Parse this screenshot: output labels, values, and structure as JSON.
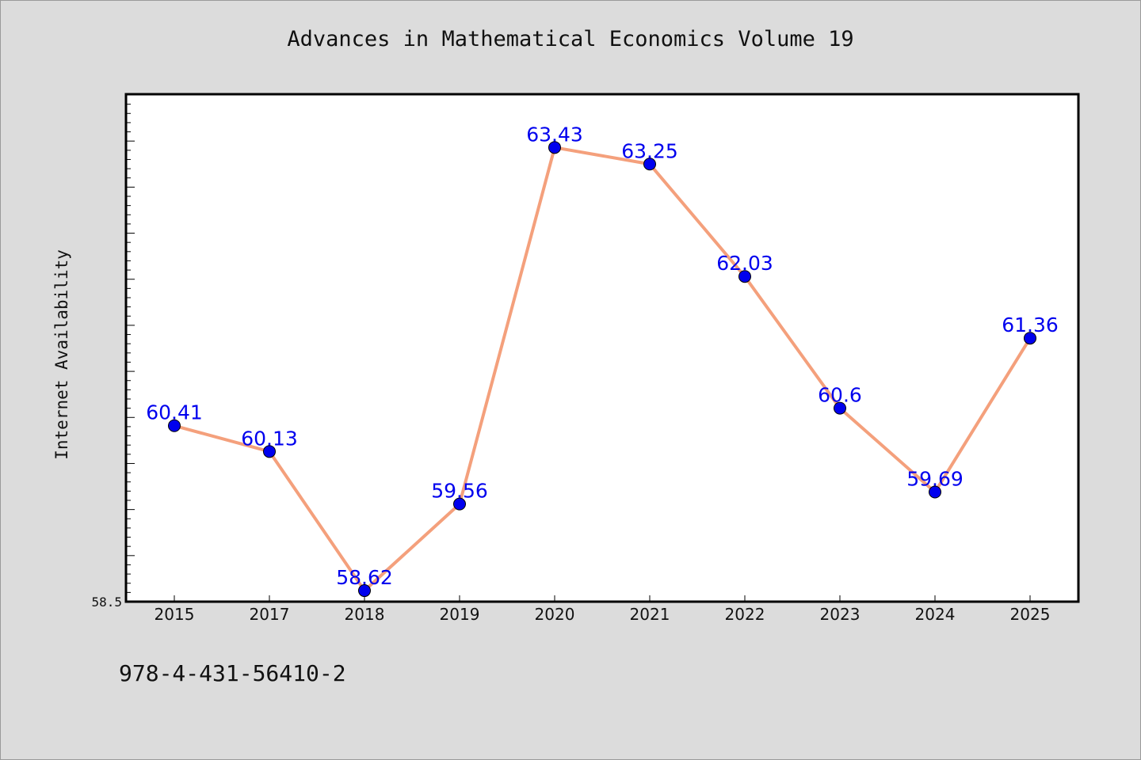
{
  "chart_data": {
    "type": "line",
    "title": "Advances in Mathematical Economics Volume 19",
    "ylabel": "Internet Availability",
    "xlabel": "",
    "categories": [
      "2015",
      "2017",
      "2018",
      "2019",
      "2020",
      "2021",
      "2022",
      "2023",
      "2024",
      "2025"
    ],
    "series": [
      {
        "values": [
          60.41,
          60.13,
          58.62,
          59.56,
          63.43,
          63.25,
          62.03,
          60.6,
          59.69,
          61.36
        ],
        "labels": [
          "60.41",
          "60.13",
          "58.62",
          "59.56",
          "63.43",
          "63.25",
          "62.03",
          "60.6",
          "59.69",
          "61.36"
        ],
        "line_color": "#f4a07c",
        "marker_color": "#0000ee"
      }
    ],
    "ylim": [
      58.5,
      64.0
    ],
    "y_tick_label": "58.5",
    "grid": false
  },
  "footer": {
    "isbn": "978-4-431-56410-2"
  },
  "colors": {
    "background": "#dcdcdc",
    "plot_background": "#ffffff",
    "label_color": "#0000ee"
  }
}
